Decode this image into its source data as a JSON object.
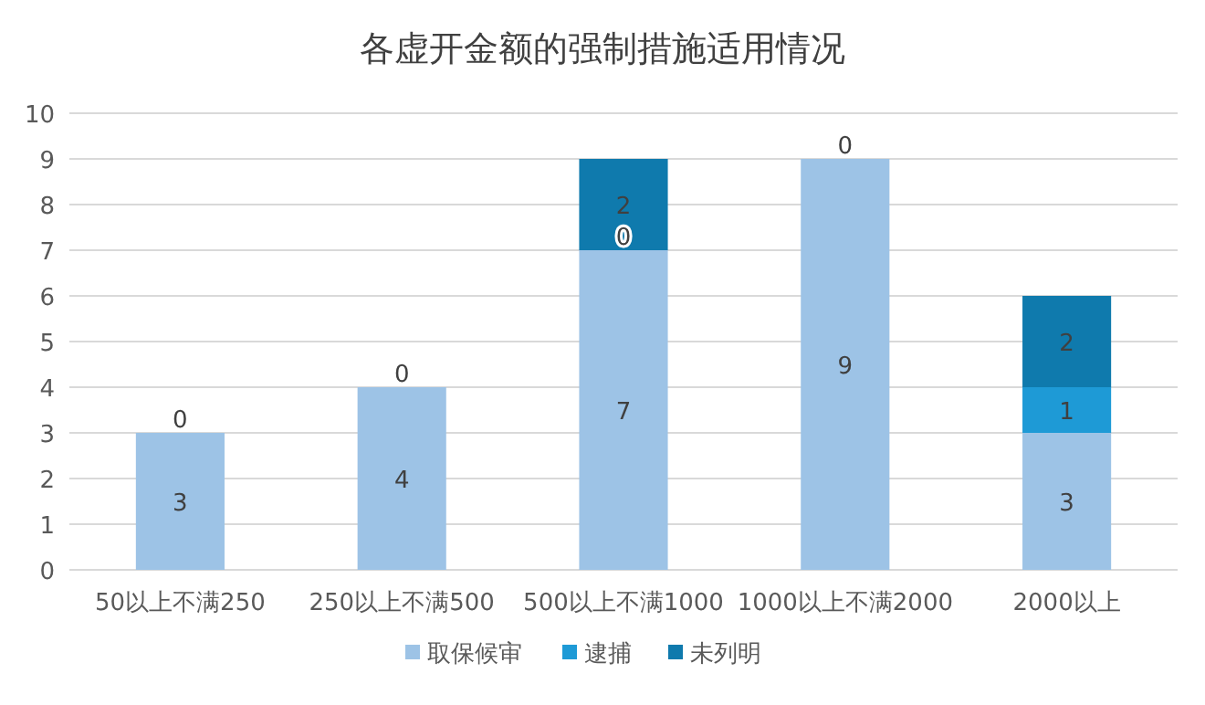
{
  "chart_data": {
    "type": "bar",
    "title": "各虚开金额的强制措施适用情况",
    "stacked": true,
    "categories": [
      "50以上不满250",
      "250以上不满500",
      "500以上不满1000",
      "1000以上不满2000",
      "2000以上"
    ],
    "series": [
      {
        "name": "取保候审",
        "color": "#9dc3e6",
        "values": [
          3,
          4,
          7,
          9,
          3
        ],
        "value_labels": [
          "3",
          "4",
          "7",
          "9",
          "3"
        ]
      },
      {
        "name": "逮捕",
        "color": "#1e9ad6",
        "values": [
          0,
          0,
          0,
          0,
          1
        ],
        "value_labels": [
          "0",
          "0",
          "0",
          "0",
          "1"
        ]
      },
      {
        "name": "未列明",
        "color": "#0f7aad",
        "values": [
          0,
          0,
          2,
          0,
          2
        ],
        "value_labels": [
          null,
          null,
          "2",
          null,
          "2"
        ]
      }
    ],
    "ylim": [
      0,
      10
    ],
    "yticks": [
      0,
      1,
      2,
      3,
      4,
      5,
      6,
      7,
      8,
      9,
      10
    ],
    "grid": "y",
    "legend": "bottom"
  }
}
